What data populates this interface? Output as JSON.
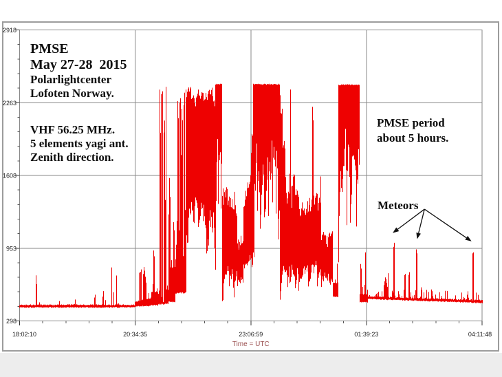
{
  "annotations": {
    "info_block": {
      "line1": "PMSE",
      "line2": "May 27-28  2015",
      "line3": "Polarlightcenter",
      "line4": "Lofoten Norway."
    },
    "antenna_block": {
      "line1": "VHF 56.25 MHz.",
      "line2": "5 elements yagi ant.",
      "line3": "Zenith direction."
    },
    "period_block": {
      "line1": "PMSE period",
      "line2": "about 5 hours."
    },
    "meteors_label": "Meteors"
  },
  "chart_data": {
    "type": "line",
    "title": "PMSE May 27-28 2015, Polarlightcenter Lofoten Norway",
    "series_name": "VHF 56.25 MHz receiver signal, zenith yagi antenna",
    "xlabel": "Time = UTC",
    "ylabel": "",
    "x_axis": {
      "ticks": [
        "18:02:10",
        "20:34:35",
        "23:06:59",
        "01:39:23",
        "04:11:48"
      ],
      "minor_per_major": 5,
      "label_color": "#9a4f4f"
    },
    "y_axis": {
      "ticks": [
        2918,
        2263,
        1608,
        953,
        298
      ],
      "range": [
        298,
        2918
      ],
      "minor_per_major": 5
    },
    "grid": {
      "show": true,
      "color": "#878787"
    },
    "line_color": "#ee0101",
    "arrow_color": "#111111",
    "quiet_baseline_level": 430,
    "tail_baseline_level": 490,
    "pmse_peak_level": 2430,
    "pmse_period_fraction": [
      0.3,
      0.735
    ],
    "waveform_segments": [
      {
        "t0": 0.0,
        "t1": 0.249,
        "mode": "noise",
        "lo": 420,
        "hi": 443,
        "p": 0.05,
        "smax": 560
      },
      {
        "t0": 0.249,
        "t1": 0.285,
        "mode": "noise",
        "lo": 427,
        "hi": 470,
        "lo2": 436,
        "hi2": 505,
        "p": 0.17,
        "smax": 800
      },
      {
        "t0": 0.285,
        "t1": 0.299,
        "mode": "noise",
        "lo": 440,
        "hi": 560,
        "p": 0.22,
        "smax": 1120
      },
      {
        "t0": 0.299,
        "t1": 0.321,
        "mode": "spikes",
        "lo": 450,
        "hi": 610,
        "p": 0.22,
        "smax": 2000
      },
      {
        "t0": 0.321,
        "t1": 0.337,
        "mode": "noise",
        "lo": 470,
        "hi": 780,
        "p": 0.28,
        "smax": 1650
      },
      {
        "t0": 0.337,
        "t1": 0.361,
        "mode": "spikes",
        "lo": 550,
        "hi": 1350,
        "p": 0.55,
        "smax": 2428
      },
      {
        "t0": 0.361,
        "t1": 0.422,
        "mode": "dense",
        "lo": 880,
        "hi": 2428,
        "lv": 640,
        "hv": 260
      },
      {
        "t0": 0.422,
        "t1": 0.437,
        "mode": "plateau",
        "lo": 900,
        "hi": 2434,
        "lv": 800
      },
      {
        "t0": 0.437,
        "t1": 0.471,
        "mode": "dense",
        "lo": 640,
        "hi": 1620,
        "lv": 240,
        "hv": 430
      },
      {
        "t0": 0.471,
        "t1": 0.483,
        "mode": "dense",
        "lo": 600,
        "hi": 1150,
        "lv": 200,
        "hv": 300
      },
      {
        "t0": 0.483,
        "t1": 0.504,
        "mode": "dense",
        "lo": 680,
        "hi": 1300,
        "hi2": 2250,
        "lv": 260,
        "hv": 420
      },
      {
        "t0": 0.504,
        "t1": 0.563,
        "mode": "plateau",
        "lo": 950,
        "hi": 2434,
        "lv": 880
      },
      {
        "t0": 0.563,
        "t1": 0.599,
        "mode": "dense",
        "lo": 640,
        "hi": 2380,
        "hi2": 1500,
        "lv": 280,
        "hv": 780
      },
      {
        "t0": 0.599,
        "t1": 0.652,
        "mode": "dense",
        "lo": 650,
        "hi": 1480,
        "lv": 240,
        "hv": 350
      },
      {
        "t0": 0.652,
        "t1": 0.677,
        "mode": "dense",
        "lo": 600,
        "hi": 1140,
        "lv": 190,
        "hv": 290
      },
      {
        "t0": 0.677,
        "t1": 0.689,
        "mode": "noise",
        "lo": 515,
        "hi": 640,
        "p": 0.3,
        "smax": 880
      },
      {
        "t0": 0.689,
        "t1": 0.735,
        "mode": "plateau",
        "lo": 860,
        "hi": 2430,
        "lv": 820
      },
      {
        "t0": 0.735,
        "t1": 0.753,
        "mode": "noise",
        "lo": 468,
        "hi": 535,
        "p": 0.33,
        "smax": 940
      },
      {
        "t0": 0.753,
        "t1": 1.0,
        "mode": "noise",
        "lo": 496,
        "hi": 518,
        "lo2": 460,
        "hi2": 484,
        "p": 0.2,
        "smax": 585
      }
    ],
    "spike_events": [
      [
        0.036,
        738
      ],
      [
        0.12,
        520
      ],
      [
        0.163,
        575
      ],
      [
        0.181,
        598
      ],
      [
        0.199,
        805
      ],
      [
        0.2095,
        722
      ],
      [
        0.262,
        768
      ],
      [
        0.2685,
        805
      ],
      [
        0.272,
        700,
        2
      ],
      [
        0.2905,
        1000
      ],
      [
        0.3035,
        2428
      ],
      [
        0.3065,
        2396
      ],
      [
        0.3095,
        2428
      ],
      [
        0.3132,
        2260
      ],
      [
        0.3168,
        2428
      ],
      [
        0.3245,
        1655
      ],
      [
        0.3336,
        1270
      ],
      [
        0.3425,
        2428
      ],
      [
        0.347,
        2428
      ],
      [
        0.3515,
        2380
      ],
      [
        0.356,
        2428
      ],
      [
        0.586,
        2420
      ],
      [
        0.634,
        2390
      ],
      [
        0.6515,
        1640
      ],
      [
        0.748,
        920
      ],
      [
        0.772,
        560
      ],
      [
        0.7915,
        700,
        3
      ],
      [
        0.797,
        730
      ],
      [
        0.8098,
        1085
      ],
      [
        0.82,
        600
      ],
      [
        0.8335,
        790
      ],
      [
        0.8425,
        800
      ],
      [
        0.8586,
        1020
      ],
      [
        0.869,
        650
      ],
      [
        0.88,
        600
      ],
      [
        0.893,
        570
      ],
      [
        0.908,
        560
      ],
      [
        0.925,
        575
      ],
      [
        0.943,
        545
      ],
      [
        0.96,
        555
      ],
      [
        0.9807,
        1005
      ],
      [
        0.992,
        545
      ]
    ],
    "meteor_arrows": {
      "origin": {
        "t": 0.8755,
        "v": 1304
      },
      "tips": [
        {
          "t": 0.8068,
          "v": 1090
        },
        {
          "t": 0.8595,
          "v": 1035
        },
        {
          "t": 0.9772,
          "v": 1015
        }
      ]
    }
  }
}
